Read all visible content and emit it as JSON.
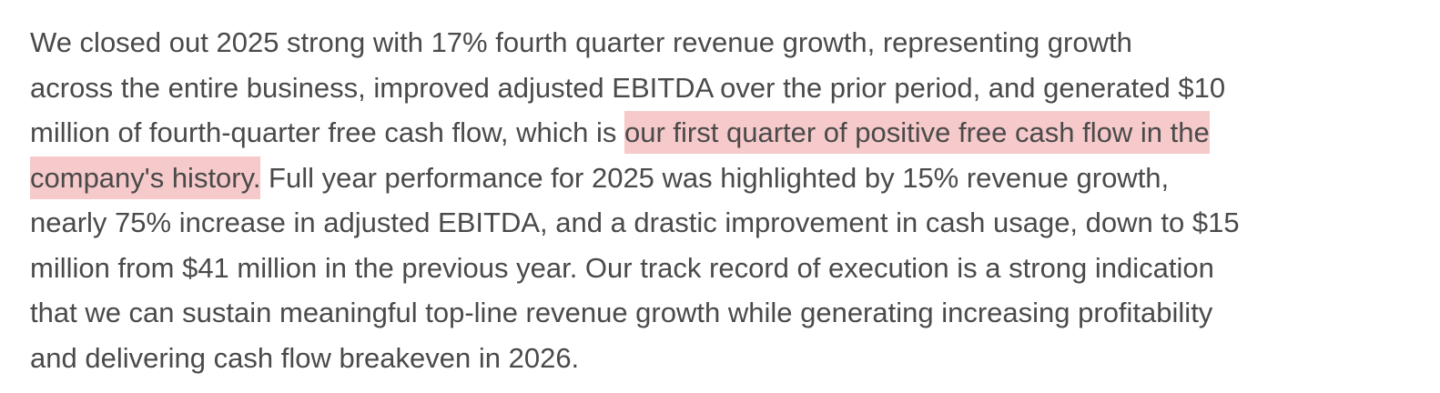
{
  "paragraph": {
    "line1": "We closed out 2025 strong with 17% fourth quarter revenue growth, representing growth",
    "line2": "across the entire business, improved adjusted EBITDA over the prior period, and generated $10",
    "line3_plain": "million of fourth-quarter free cash flow, which is ",
    "line3_highlight": "our first quarter of positive free cash flow in the",
    "line4_highlight": "company's history.",
    "line4_plain": " Full year performance for 2025 was highlighted by 15% revenue growth,",
    "line5": "nearly 75% increase in adjusted EBITDA, and a drastic improvement in cash usage, down to $15",
    "line6": "million from $41 million in the previous year. Our track record of execution is a strong indication",
    "line7": "that we can sustain meaningful top-line revenue growth while generating increasing profitability",
    "line8": "and delivering cash flow breakeven in 2026."
  },
  "highlight_color": "#f6c9ca",
  "text_color": "#4a4a4a"
}
